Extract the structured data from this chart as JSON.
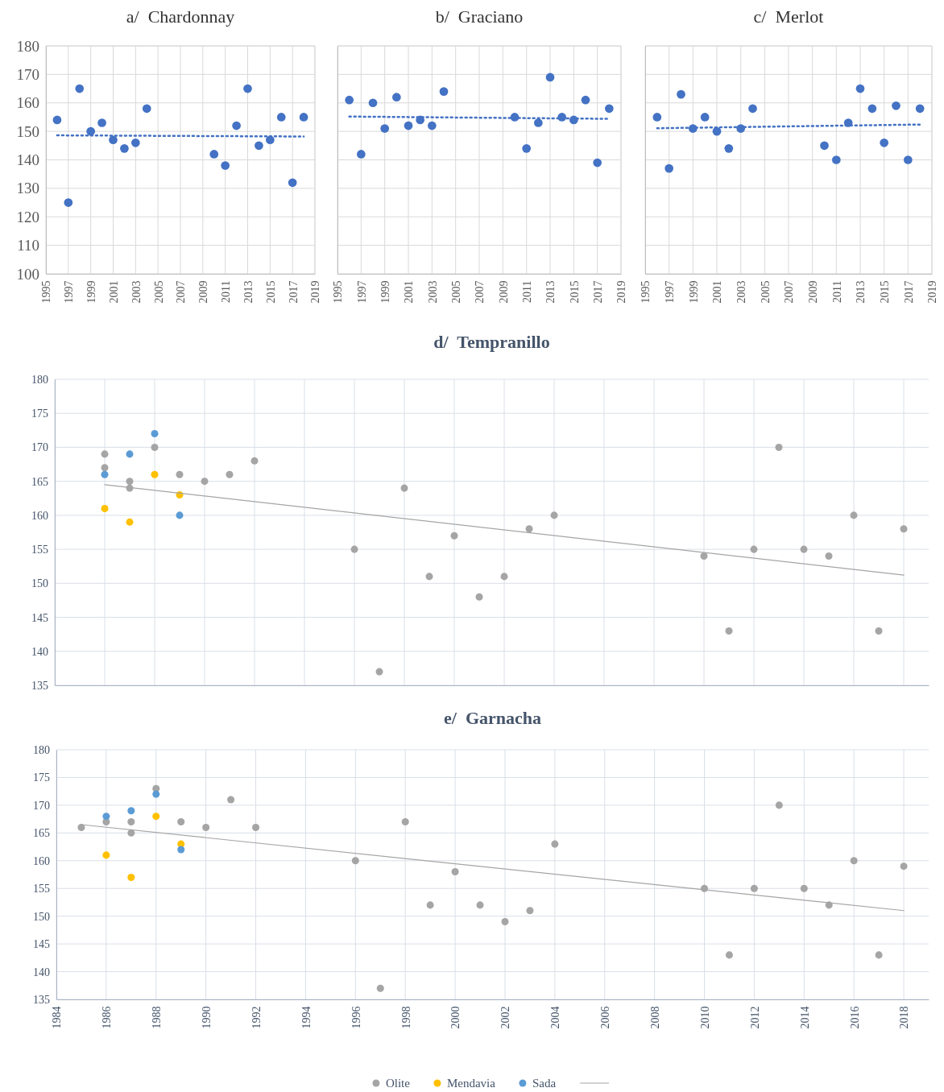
{
  "chart_data": [
    {
      "type": "scatter",
      "title": "a/  Chardonnay",
      "xlim": [
        1995,
        2019
      ],
      "xticks": [
        1995,
        1997,
        1999,
        2001,
        2003,
        2005,
        2007,
        2009,
        2011,
        2013,
        2015,
        2017,
        2019
      ],
      "ylim": [
        100,
        180
      ],
      "yticks": [
        100,
        110,
        120,
        130,
        140,
        150,
        160,
        170,
        180
      ],
      "grid": true,
      "marker": "circle",
      "series": [
        {
          "color": "#4472c4",
          "x": [
            1996,
            1997,
            1998,
            1999,
            2000,
            2001,
            2002,
            2003,
            2004,
            2010,
            2011,
            2012,
            2013,
            2014,
            2015,
            2016,
            2017,
            2018
          ],
          "values": [
            154,
            125,
            165,
            150,
            153,
            147,
            144,
            146,
            158,
            142,
            138,
            152,
            165,
            145,
            147,
            155,
            132,
            155
          ]
        },
        {
          "type": "line",
          "color": "#4472c4",
          "line_style": "dotted",
          "x": [
            1996,
            2018
          ],
          "values": [
            148.6,
            148.2
          ],
          "marker": "none"
        }
      ]
    },
    {
      "type": "scatter",
      "title": "b/  Graciano",
      "xlim": [
        1995,
        2019
      ],
      "xticks": [
        1995,
        1997,
        1999,
        2001,
        2003,
        2005,
        2007,
        2009,
        2011,
        2013,
        2015,
        2017,
        2019
      ],
      "ylim": [
        100,
        180
      ],
      "yticks": [
        100,
        110,
        120,
        130,
        140,
        150,
        160,
        170,
        180
      ],
      "tick_labels": "x",
      "grid": true,
      "marker": "circle",
      "series": [
        {
          "color": "#4472c4",
          "x": [
            1996,
            1997,
            1998,
            1999,
            2000,
            2001,
            2002,
            2003,
            2004,
            2010,
            2011,
            2012,
            2013,
            2014,
            2015,
            2016,
            2017,
            2018
          ],
          "values": [
            161,
            142,
            160,
            151,
            162,
            152,
            154,
            152,
            164,
            155,
            144,
            153,
            169,
            155,
            154,
            161,
            139,
            158
          ]
        },
        {
          "type": "line",
          "color": "#4472c4",
          "line_style": "dotted",
          "x": [
            1996,
            2018
          ],
          "values": [
            155.2,
            154.4
          ],
          "marker": "none"
        }
      ]
    },
    {
      "type": "scatter",
      "title": "c/  Merlot",
      "xlim": [
        1995,
        2019
      ],
      "xticks": [
        1995,
        1997,
        1999,
        2001,
        2003,
        2005,
        2007,
        2009,
        2011,
        2013,
        2015,
        2017,
        2019
      ],
      "ylim": [
        100,
        180
      ],
      "yticks": [
        100,
        110,
        120,
        130,
        140,
        150,
        160,
        170,
        180
      ],
      "tick_labels": "x",
      "grid": true,
      "marker": "circle",
      "series": [
        {
          "color": "#4472c4",
          "x": [
            1996,
            1997,
            1998,
            1999,
            2000,
            2001,
            2002,
            2003,
            2004,
            2010,
            2011,
            2012,
            2013,
            2014,
            2015,
            2016,
            2017,
            2018
          ],
          "values": [
            155,
            137,
            163,
            151,
            155,
            150,
            144,
            151,
            158,
            145,
            140,
            153,
            165,
            158,
            146,
            159,
            140,
            158
          ]
        },
        {
          "type": "line",
          "color": "#4472c4",
          "line_style": "dotted",
          "x": [
            1996,
            2018
          ],
          "values": [
            151.1,
            152.4
          ],
          "marker": "none"
        }
      ]
    },
    {
      "type": "scatter",
      "title": "d/  Tempranillo",
      "xlim": [
        1984,
        2019
      ],
      "xticks": [
        1984,
        1986,
        1988,
        1990,
        1992,
        1994,
        1996,
        1998,
        2000,
        2002,
        2004,
        2006,
        2008,
        2010,
        2012,
        2014,
        2016,
        2018
      ],
      "ylim": [
        135,
        180
      ],
      "yticks": [
        135,
        140,
        145,
        150,
        155,
        160,
        165,
        170,
        175,
        180
      ],
      "tick_labels": "y",
      "grid": true,
      "marker": "circle",
      "series": [
        {
          "color": "#a5a5a5",
          "x": [
            1986,
            1986,
            1987,
            1987,
            1988,
            1989,
            1990,
            1991,
            1992,
            1996,
            1997,
            1998,
            1999,
            2000,
            2001,
            2002,
            2003,
            2004,
            2010,
            2011,
            2012,
            2013,
            2014,
            2015,
            2016,
            2017,
            2018
          ],
          "values": [
            169,
            167,
            165,
            164,
            170,
            166,
            165,
            166,
            168,
            155,
            137,
            164,
            151,
            157,
            148,
            151,
            158,
            160,
            154,
            143,
            155,
            170,
            155,
            154,
            160,
            143,
            158
          ]
        },
        {
          "color": "#ffc000",
          "x": [
            1986,
            1987,
            1988,
            1989
          ],
          "values": [
            161,
            159,
            166,
            163
          ]
        },
        {
          "color": "#5b9bd5",
          "x": [
            1986,
            1987,
            1988,
            1989
          ],
          "values": [
            166,
            169,
            172,
            160
          ]
        },
        {
          "type": "line",
          "color": "#a5a5a5",
          "line_style": "solid",
          "x": [
            1986,
            2018
          ],
          "values": [
            164.5,
            151.2
          ],
          "marker": "none"
        }
      ]
    },
    {
      "type": "scatter",
      "title": "e/  Garnacha",
      "xlim": [
        1984,
        2019
      ],
      "xticks": [
        1984,
        1986,
        1988,
        1990,
        1992,
        1994,
        1996,
        1998,
        2000,
        2002,
        2004,
        2006,
        2008,
        2010,
        2012,
        2014,
        2016,
        2018
      ],
      "ylim": [
        135,
        180
      ],
      "yticks": [
        135,
        140,
        145,
        150,
        155,
        160,
        165,
        170,
        175,
        180
      ],
      "grid": true,
      "marker": "circle",
      "legend": "bottom",
      "series": [
        {
          "name": "Olite",
          "color": "#a5a5a5",
          "x": [
            1985,
            1986,
            1987,
            1987,
            1988,
            1989,
            1990,
            1991,
            1992,
            1996,
            1997,
            1998,
            1999,
            2000,
            2001,
            2002,
            2003,
            2004,
            2010,
            2011,
            2012,
            2013,
            2014,
            2015,
            2016,
            2017,
            2018
          ],
          "values": [
            166,
            167,
            167,
            165,
            173,
            167,
            166,
            171,
            166,
            160,
            137,
            167,
            152,
            158,
            152,
            149,
            151,
            163,
            155,
            143,
            155,
            170,
            155,
            152,
            160,
            143,
            159
          ]
        },
        {
          "name": "Mendavia",
          "color": "#ffc000",
          "x": [
            1986,
            1987,
            1988,
            1989
          ],
          "values": [
            161,
            157,
            168,
            163
          ]
        },
        {
          "name": "Sada",
          "color": "#5b9bd5",
          "x": [
            1986,
            1987,
            1988,
            1989
          ],
          "values": [
            168,
            169,
            172,
            162
          ]
        },
        {
          "type": "line",
          "color": "#a5a5a5",
          "line_style": "solid",
          "x": [
            1985,
            2018
          ],
          "values": [
            166.5,
            151
          ],
          "marker": "none"
        }
      ]
    }
  ]
}
